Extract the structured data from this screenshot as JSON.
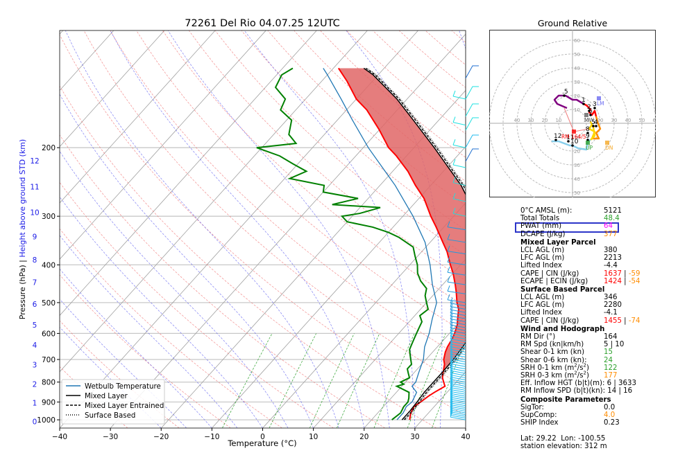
{
  "chart_data": {
    "type": "skew-t log-p sounding",
    "title": "72261 Del Rio 04.07.25 12UTC",
    "xlabel": "Temperature (°C)",
    "ylabel_left": "Pressure (hPa)",
    "ylabel_separator": "|",
    "ylabel_right": "Height above ground STD (km)",
    "xlim": [
      -40,
      40
    ],
    "ylim": [
      1050,
      100
    ],
    "x_ticks": [
      "−40",
      "−30",
      "−20",
      "−10",
      "0",
      "10",
      "20",
      "30",
      "40"
    ],
    "x_tick_values": [
      -40,
      -30,
      -20,
      -10,
      0,
      10,
      20,
      30,
      40
    ],
    "pressure_ticks": [
      1000,
      900,
      800,
      700,
      600,
      500,
      400,
      300,
      200
    ],
    "height_km_ticks": [
      {
        "km": 0,
        "p": 1010
      },
      {
        "km": 1,
        "p": 905
      },
      {
        "km": 2,
        "p": 810
      },
      {
        "km": 3,
        "p": 722
      },
      {
        "km": 4,
        "p": 642
      },
      {
        "km": 5,
        "p": 570
      },
      {
        "km": 6,
        "p": 504
      },
      {
        "km": 7,
        "p": 443
      },
      {
        "km": 8,
        "p": 388
      },
      {
        "km": 9,
        "p": 338
      },
      {
        "km": 10,
        "p": 293
      },
      {
        "km": 11,
        "p": 252
      },
      {
        "km": 12,
        "p": 216
      }
    ],
    "legend": {
      "placement": "lower-left",
      "entries": [
        {
          "label": "Wetbulb Temperature",
          "style": "solid",
          "color": "#1f77b4"
        },
        {
          "label": "Mixed Layer",
          "style": "solid",
          "color": "#000000"
        },
        {
          "label": "Mixed Layer Entrained",
          "style": "dashed",
          "color": "#000000"
        },
        {
          "label": "Surface Based",
          "style": "dotted",
          "color": "#000000"
        }
      ]
    },
    "series": [
      {
        "name": "Temperature",
        "color": "#ff0000",
        "points": [
          [
            1000,
            27.5
          ],
          [
            960,
            26.5
          ],
          [
            925,
            26
          ],
          [
            900,
            26.5
          ],
          [
            870,
            27
          ],
          [
            850,
            27.5
          ],
          [
            820,
            28.5
          ],
          [
            800,
            27.5
          ],
          [
            780,
            26.5
          ],
          [
            750,
            25.5
          ],
          [
            720,
            24.5
          ],
          [
            700,
            23.5
          ],
          [
            670,
            22.5
          ],
          [
            650,
            22
          ],
          [
            620,
            21.5
          ],
          [
            600,
            21
          ],
          [
            570,
            20
          ],
          [
            550,
            19
          ],
          [
            520,
            17.5
          ],
          [
            500,
            16
          ],
          [
            470,
            14
          ],
          [
            450,
            12.5
          ],
          [
            420,
            10
          ],
          [
            400,
            8
          ],
          [
            370,
            5
          ],
          [
            350,
            2.5
          ],
          [
            320,
            -1.5
          ],
          [
            300,
            -4.5
          ],
          [
            270,
            -9
          ],
          [
            250,
            -13
          ],
          [
            230,
            -17
          ],
          [
            210,
            -22
          ],
          [
            200,
            -25
          ],
          [
            180,
            -30
          ],
          [
            160,
            -36
          ],
          [
            150,
            -40
          ],
          [
            135,
            -45
          ],
          [
            125,
            -49
          ]
        ]
      },
      {
        "name": "Dewpoint",
        "color": "#008000",
        "points": [
          [
            1000,
            24
          ],
          [
            960,
            24.5
          ],
          [
            925,
            24
          ],
          [
            900,
            24
          ],
          [
            880,
            23.5
          ],
          [
            850,
            22.5
          ],
          [
            820,
            19
          ],
          [
            810,
            20
          ],
          [
            800,
            19
          ],
          [
            780,
            20
          ],
          [
            760,
            19
          ],
          [
            740,
            18
          ],
          [
            720,
            18
          ],
          [
            700,
            17
          ],
          [
            680,
            16
          ],
          [
            660,
            15
          ],
          [
            640,
            14.5
          ],
          [
            620,
            14
          ],
          [
            600,
            13.5
          ],
          [
            580,
            13
          ],
          [
            560,
            12.5
          ],
          [
            540,
            11
          ],
          [
            520,
            11.5
          ],
          [
            500,
            10
          ],
          [
            480,
            8.5
          ],
          [
            460,
            7.5
          ],
          [
            440,
            5
          ],
          [
            420,
            3
          ],
          [
            400,
            1.5
          ],
          [
            380,
            -0.5
          ],
          [
            360,
            -2.5
          ],
          [
            340,
            -7
          ],
          [
            330,
            -10
          ],
          [
            320,
            -14
          ],
          [
            310,
            -20
          ],
          [
            300,
            -22
          ],
          [
            295,
            -19
          ],
          [
            285,
            -16
          ],
          [
            280,
            -26
          ],
          [
            270,
            -22
          ],
          [
            260,
            -30
          ],
          [
            250,
            -31
          ],
          [
            240,
            -39
          ],
          [
            230,
            -37
          ],
          [
            220,
            -41
          ],
          [
            210,
            -45
          ],
          [
            200,
            -51
          ],
          [
            195,
            -44
          ],
          [
            185,
            -47
          ],
          [
            170,
            -49
          ],
          [
            160,
            -53
          ],
          [
            150,
            -54
          ],
          [
            140,
            -58
          ],
          [
            130,
            -59
          ],
          [
            125,
            -58
          ]
        ]
      },
      {
        "name": "Wetbulb Temperature",
        "color": "#1f77b4",
        "points": [
          [
            1000,
            25
          ],
          [
            960,
            25
          ],
          [
            925,
            24.5
          ],
          [
            900,
            24.8
          ],
          [
            850,
            24
          ],
          [
            820,
            22
          ],
          [
            800,
            22
          ],
          [
            760,
            21
          ],
          [
            720,
            20
          ],
          [
            700,
            19.5
          ],
          [
            650,
            17.5
          ],
          [
            600,
            16
          ],
          [
            550,
            14
          ],
          [
            500,
            12
          ],
          [
            450,
            8
          ],
          [
            400,
            4
          ],
          [
            350,
            -1
          ],
          [
            300,
            -8
          ],
          [
            250,
            -17
          ],
          [
            200,
            -29
          ],
          [
            170,
            -37
          ],
          [
            150,
            -43
          ],
          [
            130,
            -50
          ],
          [
            125,
            -52
          ]
        ]
      },
      {
        "name": "Mixed Layer",
        "color": "#000000",
        "points": [
          [
            1000,
            26
          ],
          [
            950,
            26
          ],
          [
            900,
            25.8
          ],
          [
            850,
            25.5
          ],
          [
            800,
            25.5
          ],
          [
            750,
            25.5
          ],
          [
            700,
            25.4
          ],
          [
            650,
            25
          ],
          [
            600,
            24.5
          ],
          [
            550,
            23.5
          ],
          [
            500,
            22
          ],
          [
            450,
            19.5
          ],
          [
            400,
            16
          ],
          [
            350,
            11
          ],
          [
            300,
            4.5
          ],
          [
            250,
            -4
          ],
          [
            200,
            -16
          ],
          [
            170,
            -25
          ],
          [
            150,
            -32
          ],
          [
            130,
            -41
          ],
          [
            125,
            -44
          ]
        ]
      }
    ],
    "cape_shading": {
      "color": "#e06666",
      "from_hPa": 745,
      "to_hPa": 125
    }
  },
  "hodograph": {
    "title": "Ground Relative",
    "rings": [
      10,
      20,
      30,
      40,
      50,
      60
    ],
    "ring_labels_x": [
      "40",
      "30",
      "20",
      "10",
      "10",
      "20",
      "30",
      "40",
      "50",
      "60"
    ],
    "ring_labels_y": [
      "60",
      "50",
      "40",
      "30",
      "20",
      "10",
      "10",
      "20",
      "30",
      "40",
      "50"
    ],
    "segments": [
      {
        "range_km": "0-0.5",
        "color": "#800080",
        "points": [
          [
            -4,
            11
          ],
          [
            -11,
            14
          ],
          [
            -13,
            17
          ],
          [
            -10,
            20
          ],
          [
            -5,
            20
          ],
          [
            0,
            17
          ],
          [
            3,
            17
          ],
          [
            8,
            14
          ]
        ]
      },
      {
        "range_km": "0.5-3",
        "color": "#ff0000",
        "points": [
          [
            8,
            14
          ],
          [
            10,
            13
          ],
          [
            13,
            10
          ],
          [
            12,
            8
          ],
          [
            14,
            6
          ],
          [
            16,
            9
          ],
          [
            17,
            5
          ]
        ]
      },
      {
        "range_km": "3-6",
        "color": "#ff8c00",
        "points": [
          [
            17,
            5
          ],
          [
            18,
            1
          ],
          [
            20,
            -4
          ],
          [
            17,
            -7
          ],
          [
            19,
            -11
          ],
          [
            14,
            -11
          ]
        ]
      },
      {
        "range_km": "6-9",
        "color": "#ffd700",
        "points": [
          [
            14,
            -11
          ],
          [
            16,
            -6
          ],
          [
            12,
            -4
          ],
          [
            14,
            -1
          ],
          [
            13,
            1
          ],
          [
            15,
            -3
          ],
          [
            16,
            -9
          ],
          [
            13,
            -12
          ]
        ]
      },
      {
        "range_km": "9-12",
        "color": "#87ceeb",
        "points": [
          [
            13,
            -12
          ],
          [
            11,
            -13
          ],
          [
            10,
            -19
          ],
          [
            4,
            -18
          ],
          [
            0,
            -16
          ],
          [
            -2,
            -16
          ],
          [
            -10,
            -13
          ],
          [
            -15,
            -13
          ]
        ]
      }
    ],
    "point_labels": [
      {
        "text": ".5",
        "u": -6,
        "v": 20
      },
      {
        "text": "1",
        "u": 8,
        "v": 14
      },
      {
        "text": "2",
        "u": 12,
        "v": 9
      },
      {
        "text": "3",
        "u": 16,
        "v": 11
      },
      {
        "text": "4",
        "u": 17,
        "v": -2
      },
      {
        "text": "5",
        "u": 15,
        "v": -2
      },
      {
        "text": "6",
        "u": 13,
        "v": 6
      },
      {
        "text": "8",
        "u": 11,
        "v": -7
      },
      {
        "text": "9",
        "u": 11,
        "v": -12
      },
      {
        "text": "10",
        "u": 0,
        "v": -16
      },
      {
        "text": "11",
        "u": -3,
        "v": -13
      },
      {
        "text": "12",
        "u": -12,
        "v": -12
      }
    ],
    "markers": [
      {
        "label": "LM",
        "color": "#6a6af0",
        "u": 19,
        "v": 18
      },
      {
        "label": "MW",
        "color": "#606060",
        "u": 10,
        "v": 6
      },
      {
        "label": "RM 164/5",
        "color": "#ff0000",
        "u": 1,
        "v": -6
      },
      {
        "label": "UP",
        "color": "#2ca02c",
        "u": 11,
        "v": -14
      },
      {
        "label": "DN",
        "color": "#f5a623",
        "u": 25,
        "v": -14
      }
    ]
  },
  "stats": {
    "top": [
      {
        "label": "0°C AMSL (m):",
        "value": "5121",
        "color": "#000000"
      },
      {
        "label": "Total Totals",
        "value": "48.4",
        "color": "#2ca02c"
      },
      {
        "label": "PWAT (mm)",
        "value": "64",
        "color": "#ff00ff",
        "highlighted": true
      },
      {
        "label": "DCAPE (J/kg)",
        "value": "377",
        "color": "#ff8c00"
      }
    ],
    "mixed_layer": {
      "title": "Mixed Layer Parcel",
      "rows": [
        {
          "label": "LCL AGL (m)",
          "value": "380",
          "color": "#000000"
        },
        {
          "label": "LFC AGL (m)",
          "value": "2213",
          "color": "#000000"
        },
        {
          "label": "Lifted Index",
          "value": "-4.4",
          "color": "#000000"
        }
      ],
      "cape_label": "CAPE | CIN (J/kg)",
      "cape": "1637",
      "cin": "-59",
      "ecape_label": "ECAPE | ECIN (J/kg)",
      "ecape": "1424",
      "ecin": "-54"
    },
    "surface": {
      "title": "Surface Based Parcel",
      "rows": [
        {
          "label": "LCL AGL (m)",
          "value": "346",
          "color": "#000000"
        },
        {
          "label": "LFC AGL (m)",
          "value": "2280",
          "color": "#000000"
        },
        {
          "label": "Lifted Index",
          "value": "-4.1",
          "color": "#000000"
        }
      ],
      "cape_label": "CAPE | CIN (J/kg)",
      "cape": "1455",
      "cin": "-74"
    },
    "wind": {
      "title": "Wind and Hodograph",
      "rows": [
        {
          "label": "RM Dir (°)",
          "value": "164",
          "color": "#000000"
        },
        {
          "label": "RM Spd (kn|km/h)",
          "value": "5 | 10",
          "color": "#000000"
        },
        {
          "label": "Shear 0-1 km (kn)",
          "value": "15",
          "color": "#2ca02c"
        },
        {
          "label": "Shear 0-6 km (kn):",
          "value": "24",
          "color": "#2ca02c"
        }
      ],
      "srh01_label": "SRH 0-1 km (m",
      "srh01": "122",
      "srh01_color": "#2ca02c",
      "srh03_label": "SRH 0-3 km (m",
      "srh03": "177",
      "srh03_color": "#ff8c00",
      "eff_hgt": "Eff. Inflow HGT (b|t)(m): 6 | 3633",
      "rm_inflow": "RM Inflow SPD (b|t)(kn): 14 | 16"
    },
    "composite": {
      "title": "Composite Parameters",
      "rows": [
        {
          "label": "SigTor:",
          "value": "0.0",
          "color": "#000000"
        },
        {
          "label": "SupComp:",
          "value": "4.0",
          "color": "#ff8c00"
        },
        {
          "label": "SHIP Index",
          "value": "0.23",
          "color": "#000000"
        }
      ]
    },
    "location": "Lat: 29.22  Lon: -100.55",
    "elevation": "station elevation: 312 m"
  }
}
